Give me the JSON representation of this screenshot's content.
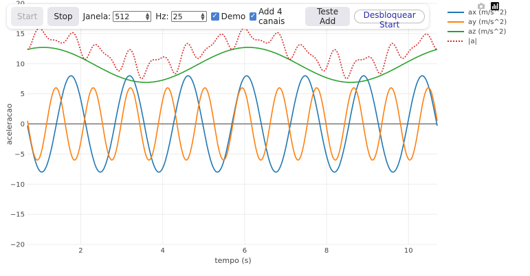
{
  "toolbar": {
    "start_label": "Start",
    "stop_label": "Stop",
    "janela_label": "Janela:",
    "janela_value": "512",
    "hz_label": "Hz:",
    "hz_value": "25",
    "demo_label": "Demo",
    "add_canais_label": "Add 4 canais",
    "teste_add_label": "Teste Add",
    "desbloquear_label": "Desbloquear Start"
  },
  "modebar": {
    "icons": [
      "camera-icon",
      "plotly-logo-icon"
    ]
  },
  "chart_data": {
    "type": "line",
    "xlabel": "tempo (s)",
    "ylabel": "aceleracao",
    "xlim": [
      0.7,
      10.7
    ],
    "ylim": [
      -20,
      20
    ],
    "xticks": [
      2,
      4,
      6,
      8,
      10
    ],
    "yticks": [
      -20,
      -15,
      -10,
      -5,
      0,
      5,
      10,
      15,
      20
    ],
    "grid": true,
    "zero_line": true,
    "legend_position": "top-right",
    "series": [
      {
        "name": "ax (m/s^2)",
        "color": "#1f77b4",
        "dash": "solid",
        "model": {
          "amplitude": 8,
          "frequency_hz": 0.7,
          "phase": 0.1,
          "offset": 0
        }
      },
      {
        "name": "ay (m/s^2)",
        "color": "#ff7f0e",
        "dash": "solid",
        "model": {
          "amplitude": 6,
          "frequency_hz": 1.1,
          "phase": 4.5,
          "offset": 0
        }
      },
      {
        "name": "az (m/s^2)",
        "color": "#2ca02c",
        "dash": "solid",
        "model": {
          "amplitude": 2.9,
          "frequency_hz": 0.2,
          "phase": 0.2,
          "offset": 9.8
        }
      },
      {
        "name": "|a|",
        "color": "#d62728",
        "dash": "dot",
        "derived": "sqrt(ax^2+ay^2+az^2)"
      }
    ]
  }
}
